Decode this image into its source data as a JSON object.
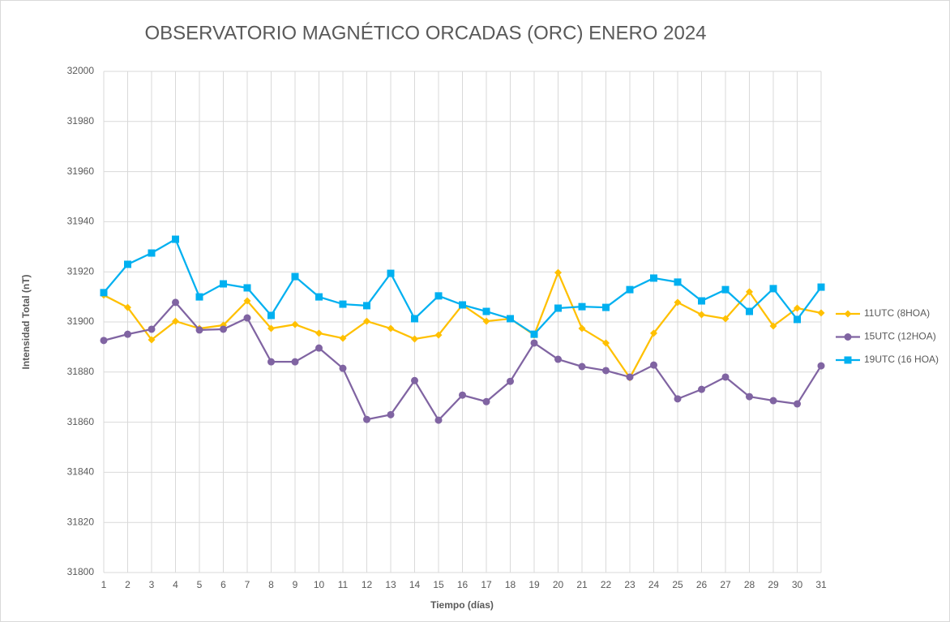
{
  "chart_data": {
    "type": "line",
    "title": "OBSERVATORIO MAGNÉTICO ORCADAS (ORC) ENERO 2024",
    "x_label": "Tiempo (días)",
    "y_label": "Intensidad Total (nT)",
    "x": [
      1,
      2,
      3,
      4,
      5,
      6,
      7,
      8,
      9,
      10,
      11,
      12,
      13,
      14,
      15,
      16,
      17,
      18,
      19,
      20,
      21,
      22,
      23,
      24,
      25,
      26,
      27,
      28,
      29,
      30,
      31
    ],
    "xlim": [
      1,
      31
    ],
    "ylim": [
      31800,
      32000
    ],
    "yticks": [
      31800,
      31820,
      31840,
      31860,
      31880,
      31900,
      31920,
      31940,
      31960,
      31980,
      32000
    ],
    "grid": true,
    "legend": "right",
    "series": [
      {
        "name": "11UTC (8HOA)",
        "color": "#FFC000",
        "marker": "diamond",
        "values": [
          31910.7,
          31905.8,
          31892.9,
          31900.3,
          31897.4,
          31898.7,
          31908.4,
          31897.4,
          31899,
          31895.5,
          31893.5,
          31900.3,
          31897.4,
          31893.2,
          31894.8,
          31906.8,
          31900.3,
          31901.3,
          31894.8,
          31919.7,
          31897.4,
          31891.6,
          31877.7,
          31895.5,
          31907.8,
          31902.9,
          31901.3,
          31912,
          31898.4,
          31905.5,
          31903.6
        ]
      },
      {
        "name": "15UTC (12HOA)",
        "color": "#8064A2",
        "marker": "circle",
        "values": [
          31892.6,
          31895.1,
          31897.1,
          31907.8,
          31896.8,
          31897.1,
          31901.6,
          31884.1,
          31884.1,
          31889.6,
          31881.5,
          31861.1,
          31863,
          31876.6,
          31860.8,
          31870.8,
          31868.2,
          31876.3,
          31891.6,
          31885.1,
          31882.2,
          31880.6,
          31878,
          31882.8,
          31869.3,
          31873.1,
          31878,
          31870.2,
          31868.6,
          31867.3,
          31882.5
        ]
      },
      {
        "name": "19UTC (16 HOA)",
        "color": "#00B0F0",
        "marker": "square",
        "values": [
          31911.7,
          31923,
          31927.5,
          31933,
          31910,
          31915.2,
          31913.6,
          31902.6,
          31918.1,
          31910,
          31907.1,
          31906.5,
          31919.4,
          31901.3,
          31910.4,
          31906.8,
          31904.2,
          31901.3,
          31895.1,
          31905.5,
          31906.1,
          31905.8,
          31912.9,
          31917.5,
          31915.9,
          31908.4,
          31912.9,
          31904.2,
          31913.3,
          31901,
          31913.9
        ]
      }
    ]
  }
}
